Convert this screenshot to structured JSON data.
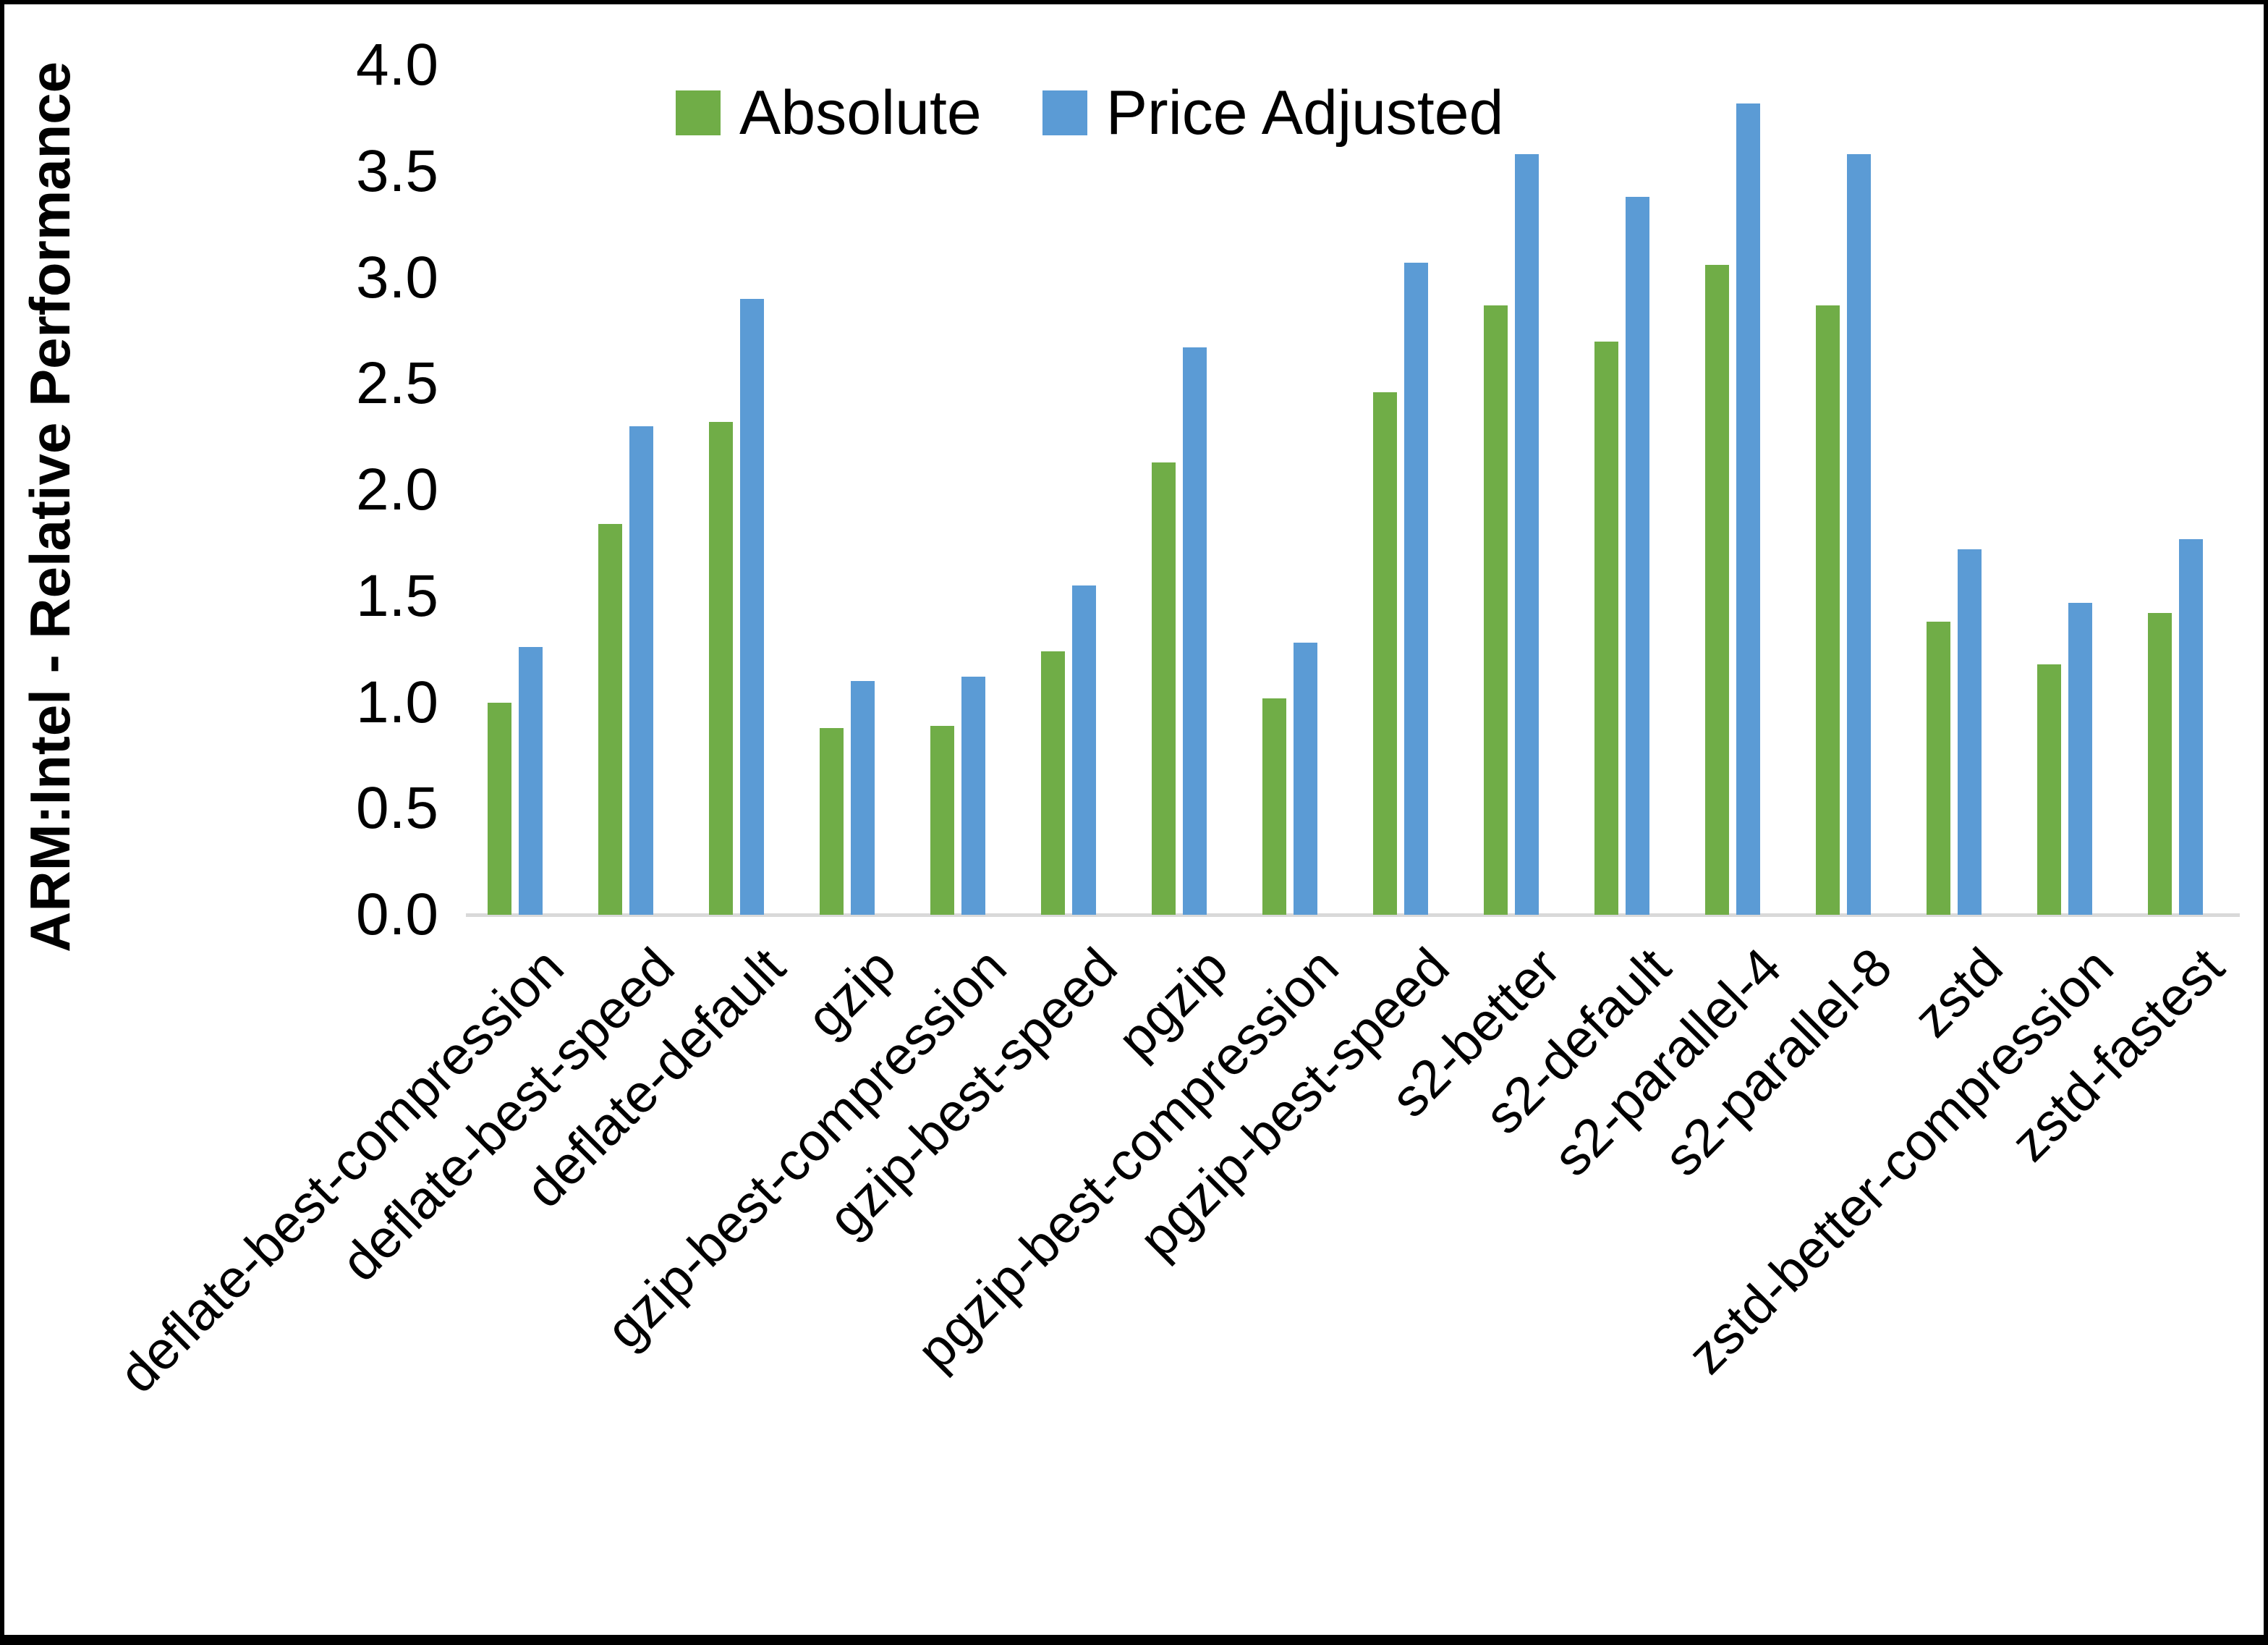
{
  "chart_data": {
    "type": "bar",
    "title": "",
    "ylabel": "ARM:Intel - Relative Performance",
    "xlabel": "",
    "ylim": [
      0.0,
      4.0
    ],
    "ytick_step": 0.5,
    "ytick_labels": [
      "0.0",
      "0.5",
      "1.0",
      "1.5",
      "2.0",
      "2.5",
      "3.0",
      "3.5",
      "4.0"
    ],
    "grid": false,
    "legend_position": "top-center",
    "axis_line_color": "#d9d9d9",
    "text_color": "#000000",
    "categories": [
      "deflate-best-compression",
      "deflate-best-speed",
      "deflate-default",
      "gzip",
      "gzip-best-compression",
      "gzip-best-speed",
      "pgzip",
      "pgzip-best-compression",
      "pgzip-best-speed",
      "s2-better",
      "s2-default",
      "s2-parallel-4",
      "s2-parallel-8",
      "zstd",
      "zstd-better-compression",
      "zstd-fastest"
    ],
    "series": [
      {
        "name": "Absolute",
        "color": "#70ad47",
        "values": [
          1.0,
          1.84,
          2.32,
          0.88,
          0.89,
          1.24,
          2.13,
          1.02,
          2.46,
          2.87,
          2.7,
          3.06,
          2.87,
          1.38,
          1.18,
          1.42
        ]
      },
      {
        "name": "Price Adjusted",
        "color": "#5b9bd5",
        "values": [
          1.26,
          2.3,
          2.9,
          1.1,
          1.12,
          1.55,
          2.67,
          1.28,
          3.07,
          3.58,
          3.38,
          3.82,
          3.58,
          1.72,
          1.47,
          1.77
        ]
      }
    ]
  }
}
